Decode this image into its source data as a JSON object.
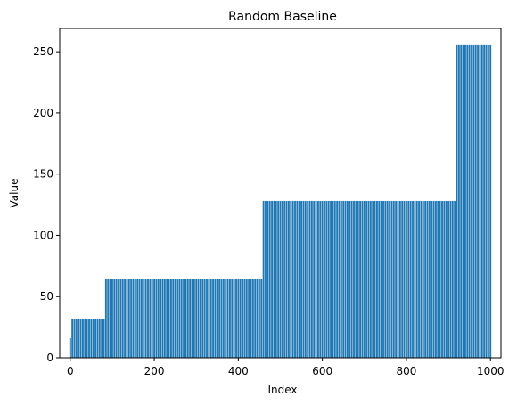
{
  "chart_data": {
    "type": "bar",
    "title": "Random Baseline",
    "xlabel": "Index",
    "ylabel": "Value",
    "xlim": [
      -25,
      1025
    ],
    "ylim": [
      0,
      269
    ],
    "x_ticks": [
      0,
      200,
      400,
      600,
      800,
      1000
    ],
    "y_ticks": [
      0,
      50,
      100,
      150,
      200,
      250
    ],
    "grid": false,
    "bar_color": "#1f77b4",
    "segments": [
      {
        "x_start": 0,
        "x_end": 0,
        "value": 16
      },
      {
        "x_start": 5,
        "x_end": 80,
        "value": 32
      },
      {
        "x_start": 85,
        "x_end": 455,
        "value": 64
      },
      {
        "x_start": 460,
        "x_end": 915,
        "value": 128
      },
      {
        "x_start": 920,
        "x_end": 1000,
        "value": 256
      }
    ],
    "bar_step": 5
  }
}
